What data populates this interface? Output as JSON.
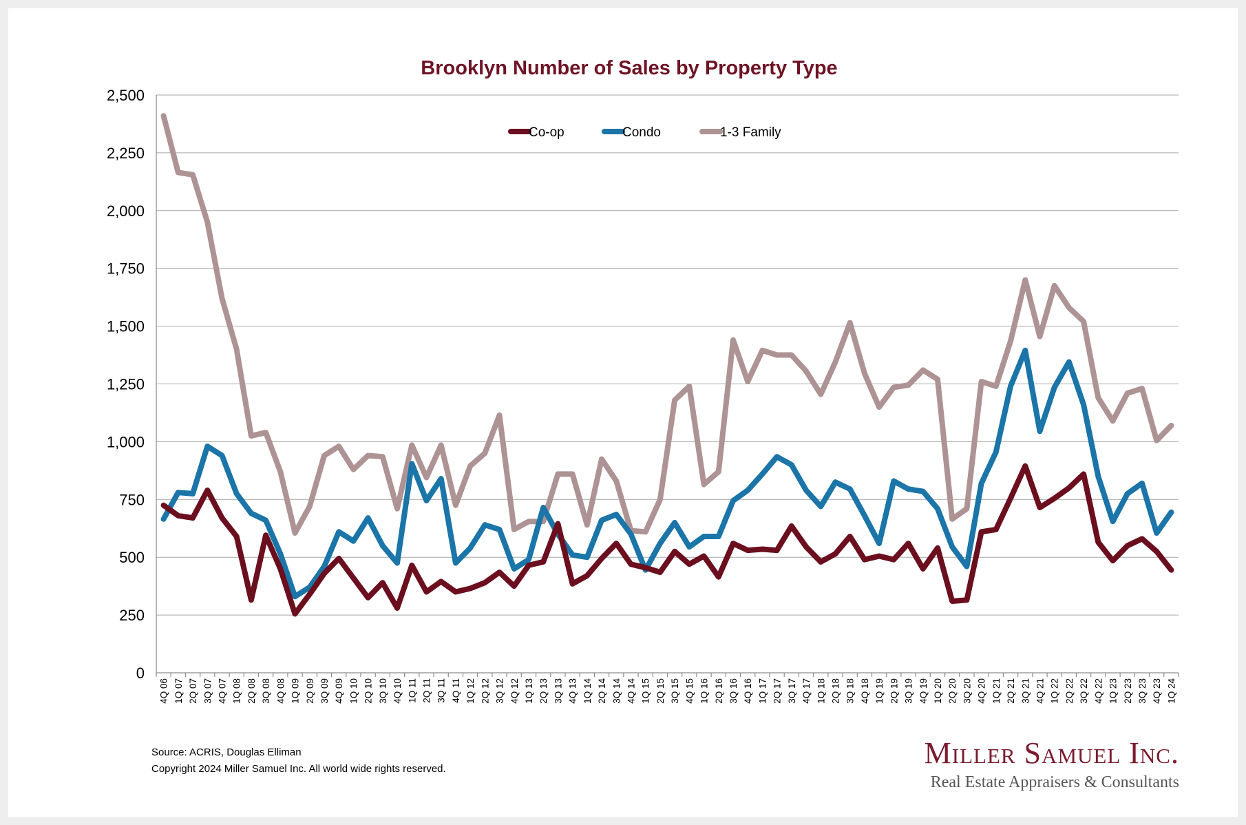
{
  "chart_data": {
    "type": "line",
    "title": "Brooklyn Number of Sales by Property Type",
    "xlabel": "",
    "ylabel": "",
    "ylim": [
      0,
      2500
    ],
    "yticks": [
      0,
      250,
      500,
      750,
      1000,
      1250,
      1500,
      1750,
      2000,
      2250,
      2500
    ],
    "ytick_labels": [
      "0",
      "250",
      "500",
      "750",
      "1,000",
      "1,250",
      "1,500",
      "1,750",
      "2,000",
      "2,250",
      "2,500"
    ],
    "grid": true,
    "legend_position": "top-center",
    "categories": [
      "4Q 06",
      "1Q 07",
      "2Q 07",
      "3Q 07",
      "4Q 07",
      "1Q 08",
      "2Q 08",
      "3Q 08",
      "4Q 08",
      "1Q 09",
      "2Q 09",
      "3Q 09",
      "4Q 09",
      "1Q 10",
      "2Q 10",
      "3Q 10",
      "4Q 10",
      "1Q 11",
      "2Q 11",
      "3Q 11",
      "4Q 11",
      "1Q 12",
      "2Q 12",
      "3Q 12",
      "4Q 12",
      "1Q 13",
      "2Q 13",
      "3Q 13",
      "4Q 13",
      "1Q 14",
      "2Q 14",
      "3Q 14",
      "4Q 14",
      "1Q 15",
      "2Q 15",
      "3Q 15",
      "4Q 15",
      "1Q 16",
      "2Q 16",
      "3Q 16",
      "4Q 16",
      "1Q 17",
      "2Q 17",
      "3Q 17",
      "4Q 17",
      "1Q 18",
      "2Q 18",
      "3Q 18",
      "4Q 18",
      "1Q 19",
      "2Q 19",
      "3Q 19",
      "4Q 19",
      "1Q 20",
      "2Q 20",
      "3Q 20",
      "4Q 20",
      "1Q 21",
      "2Q 21",
      "3Q 21",
      "4Q 21",
      "1Q 22",
      "2Q 22",
      "3Q 22",
      "4Q 22",
      "1Q 23",
      "2Q 23",
      "3Q 23",
      "4Q 23",
      "1Q 24"
    ],
    "series": [
      {
        "name": "Co-op",
        "color": "#6b0f1f",
        "values": [
          725,
          680,
          670,
          790,
          670,
          590,
          315,
          595,
          450,
          255,
          340,
          430,
          495,
          410,
          325,
          390,
          280,
          465,
          350,
          395,
          350,
          365,
          390,
          435,
          375,
          465,
          480,
          645,
          385,
          420,
          495,
          560,
          470,
          455,
          435,
          525,
          470,
          505,
          415,
          560,
          530,
          535,
          530,
          635,
          545,
          480,
          515,
          590,
          490,
          505,
          490,
          560,
          450,
          540,
          310,
          315,
          610,
          620,
          755,
          895,
          715,
          755,
          800,
          860,
          565,
          485,
          550,
          580,
          525,
          445
        ]
      },
      {
        "name": "Condo",
        "color": "#1b75a8",
        "values": [
          665,
          780,
          775,
          980,
          940,
          775,
          690,
          660,
          515,
          330,
          370,
          460,
          610,
          570,
          670,
          550,
          475,
          905,
          745,
          840,
          475,
          540,
          640,
          620,
          450,
          490,
          715,
          600,
          510,
          500,
          660,
          685,
          600,
          445,
          560,
          650,
          545,
          590,
          590,
          745,
          790,
          860,
          935,
          900,
          790,
          720,
          825,
          795,
          680,
          560,
          830,
          795,
          785,
          710,
          545,
          460,
          820,
          955,
          1240,
          1395,
          1045,
          1235,
          1345,
          1160,
          850,
          655,
          775,
          820,
          605,
          695
        ]
      },
      {
        "name": "1-3 Family",
        "color": "#ae9394",
        "values": [
          2410,
          2165,
          2155,
          1950,
          1620,
          1400,
          1025,
          1040,
          870,
          605,
          720,
          940,
          980,
          880,
          940,
          935,
          710,
          985,
          845,
          985,
          725,
          895,
          950,
          1115,
          620,
          655,
          655,
          860,
          860,
          640,
          925,
          830,
          615,
          610,
          750,
          1180,
          1240,
          815,
          870,
          1440,
          1260,
          1395,
          1375,
          1375,
          1305,
          1205,
          1345,
          1515,
          1295,
          1150,
          1235,
          1245,
          1310,
          1270,
          665,
          710,
          1260,
          1240,
          1435,
          1700,
          1455,
          1675,
          1580,
          1520,
          1190,
          1090,
          1210,
          1230,
          1005,
          1070
        ]
      }
    ]
  },
  "footer": {
    "source": "Source: ACRIS, Douglas Elliman",
    "copyright": "Copyright 2024 Miller Samuel Inc.  All world wide rights reserved."
  },
  "logo": {
    "name": "Miller Samuel Inc.",
    "tagline": "Real Estate Appraisers & Consultants"
  }
}
